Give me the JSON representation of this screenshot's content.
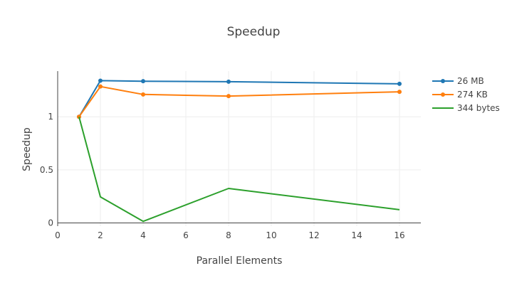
{
  "chart_data": {
    "type": "line",
    "title": "Speedup",
    "xlabel": "Parallel Elements",
    "ylabel": "Speedup",
    "xlim": [
      0,
      17
    ],
    "ylim": [
      -0.03,
      1.43
    ],
    "xticks": [
      0,
      2,
      4,
      6,
      8,
      10,
      12,
      14,
      16
    ],
    "xtick_labels": [
      "0",
      "2",
      "4",
      "6",
      "8",
      "10",
      "12",
      "14",
      "16"
    ],
    "yticks": [
      0,
      0.5,
      1
    ],
    "ytick_labels": [
      "0",
      "0.5",
      "1"
    ],
    "grid": true,
    "legend_position": "top-right",
    "series": [
      {
        "name": "26 MB",
        "color": "#1f77b4",
        "markers": true,
        "x": [
          1,
          2,
          4,
          8,
          16
        ],
        "y": [
          1.0,
          1.34,
          1.335,
          1.33,
          1.31
        ]
      },
      {
        "name": "274 KB",
        "color": "#ff7f0e",
        "markers": true,
        "x": [
          1,
          2,
          4,
          8,
          16
        ],
        "y": [
          1.0,
          1.285,
          1.21,
          1.195,
          1.235
        ]
      },
      {
        "name": "344 bytes",
        "color": "#2ca02c",
        "markers": false,
        "x": [
          1,
          2,
          4,
          8,
          16
        ],
        "y": [
          1.0,
          0.245,
          0.015,
          0.325,
          0.125
        ]
      }
    ]
  }
}
